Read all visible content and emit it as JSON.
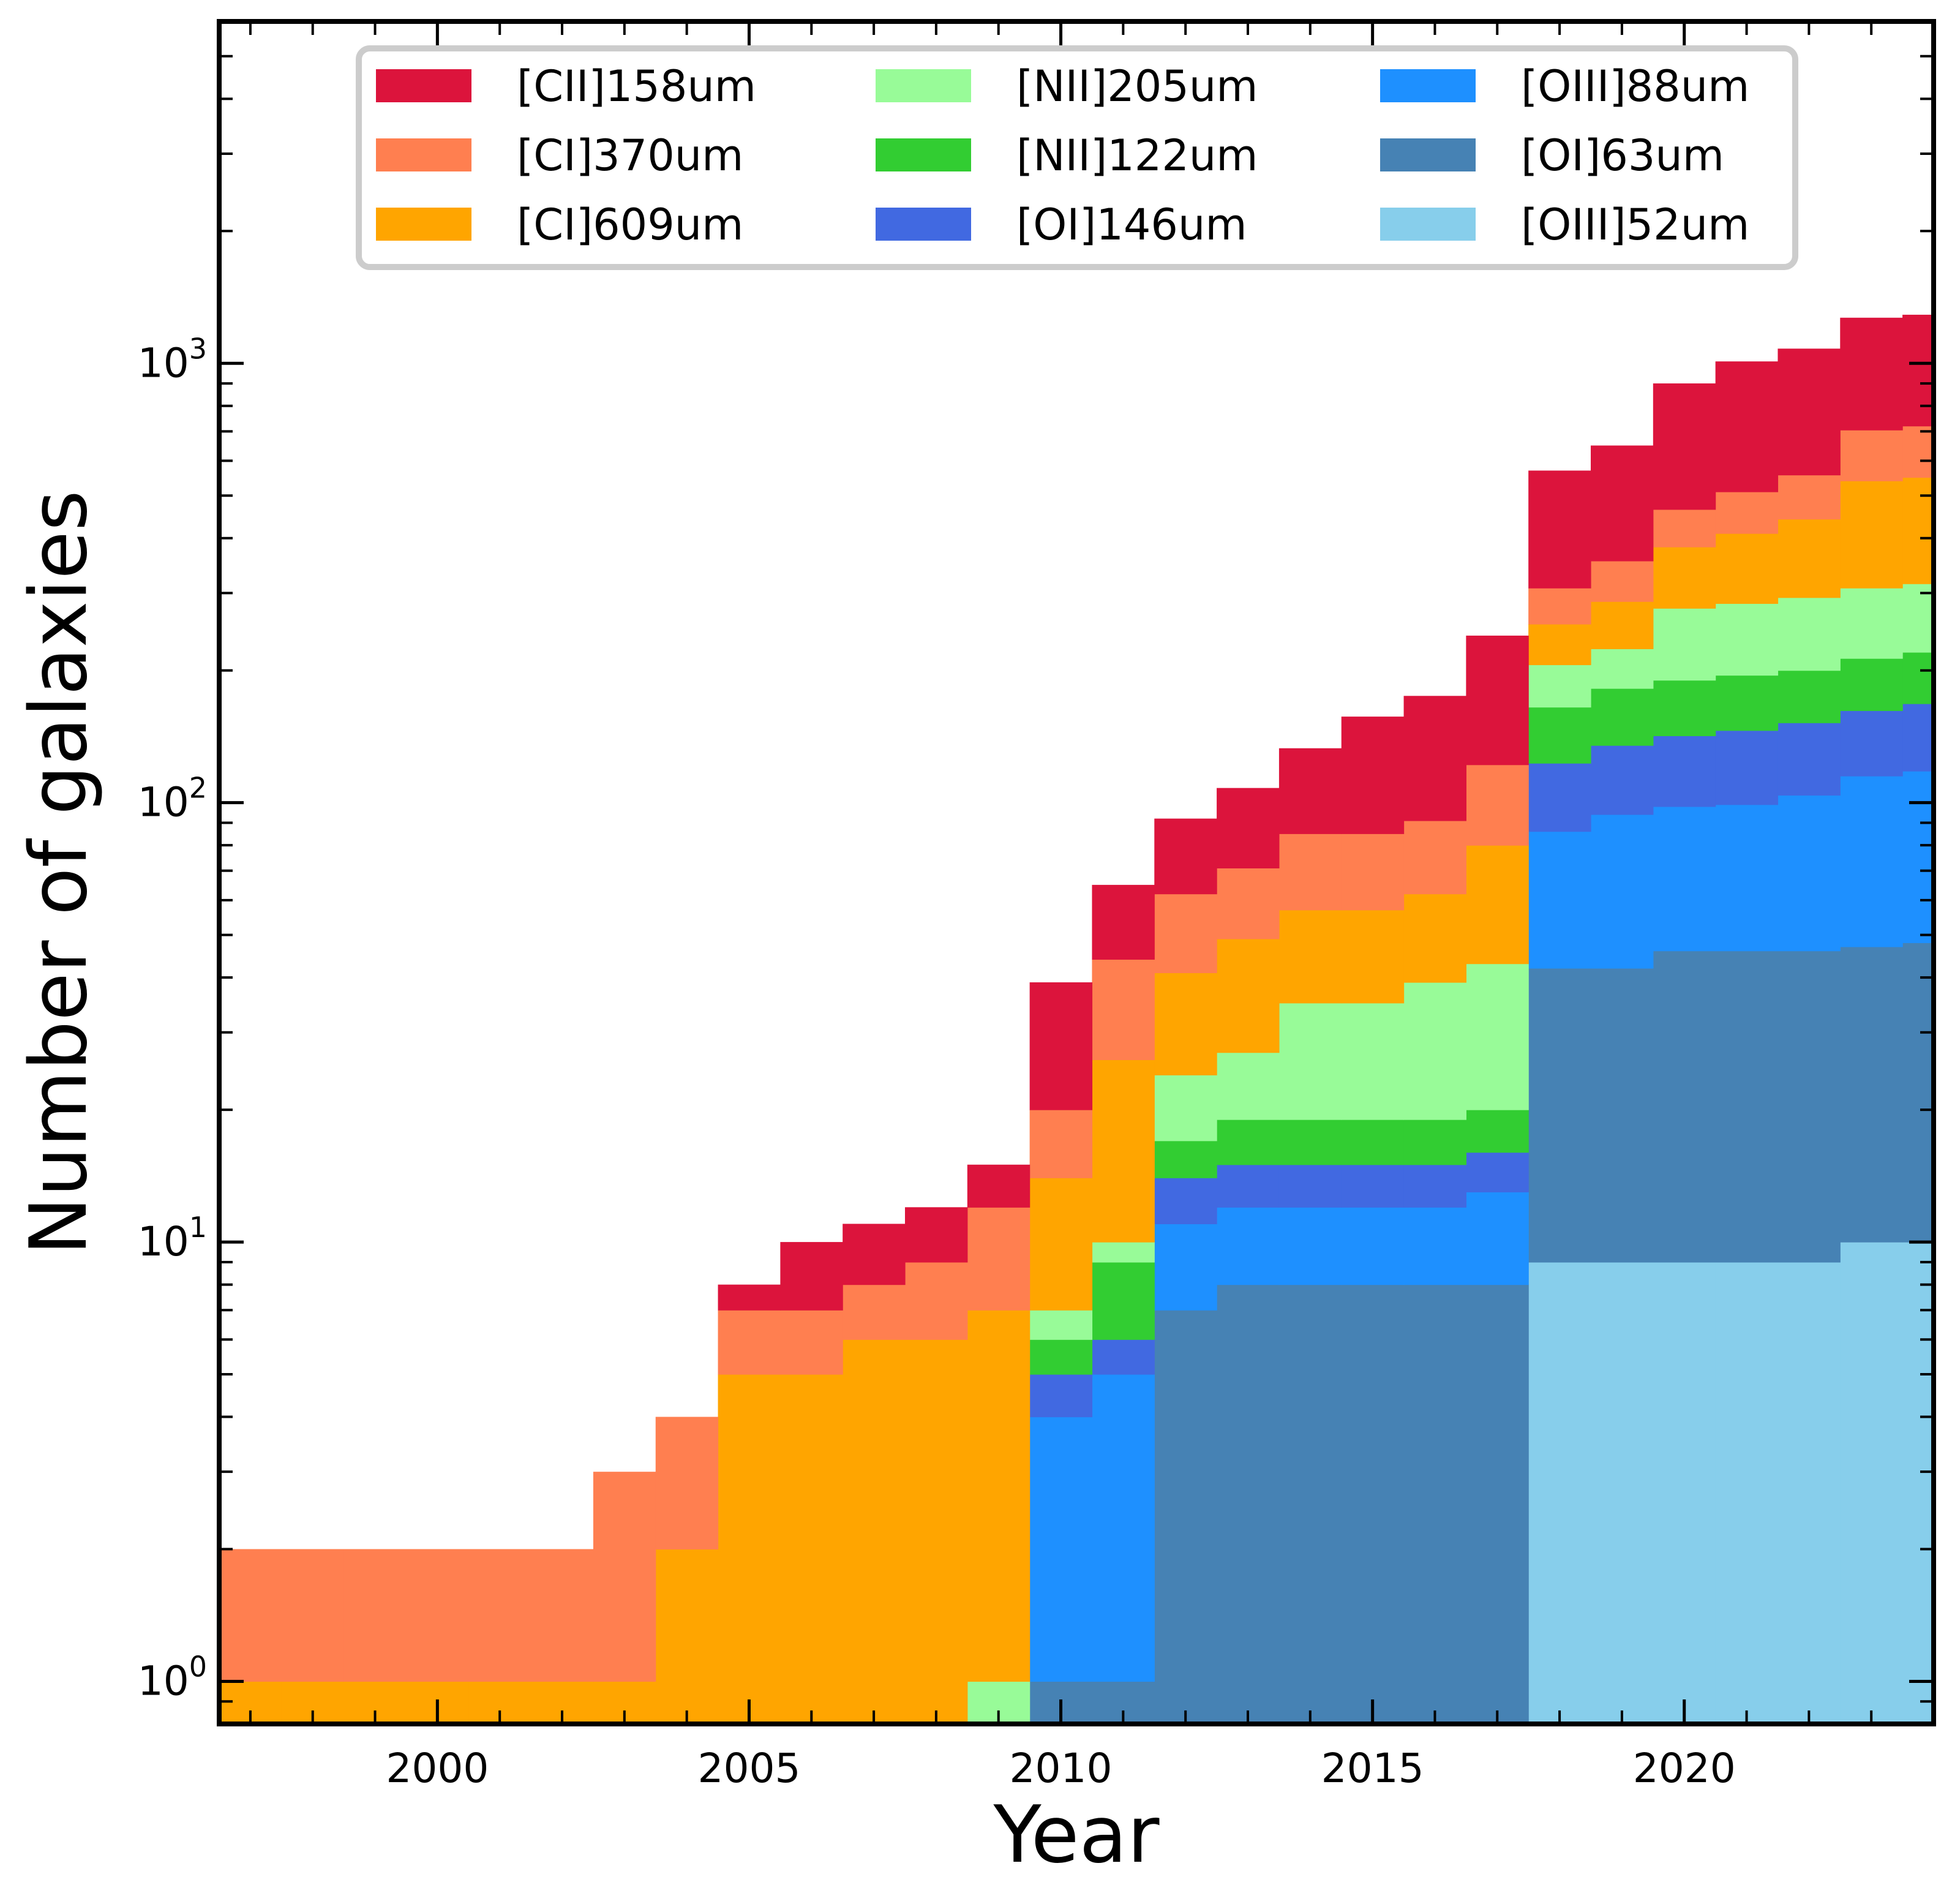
{
  "chart_data": {
    "type": "bar",
    "subtype": "stacked-histogram-step",
    "title": "",
    "xlabel": "Year",
    "ylabel": "Number of galaxies",
    "yscale": "log",
    "xlim": [
      1996.5,
      2024
    ],
    "ylim": [
      0.8,
      6000
    ],
    "x_ticks": [
      2000,
      2005,
      2010,
      2015,
      2020
    ],
    "x_tick_labels": [
      "2000",
      "2005",
      "2010",
      "2015",
      "2020"
    ],
    "y_ticks": [
      {
        "value": 1,
        "base": "10",
        "exp": "0"
      },
      {
        "value": 10,
        "base": "10",
        "exp": "1"
      },
      {
        "value": 100,
        "base": "10",
        "exp": "2"
      },
      {
        "value": 1000,
        "base": "10",
        "exp": "3"
      }
    ],
    "legend_position": "top-center",
    "legend_columns": 3,
    "years": [
      1997,
      1998,
      1999,
      2000,
      2001,
      2002,
      2003,
      2004,
      2005,
      2006,
      2007,
      2008,
      2009,
      2010,
      2011,
      2012,
      2013,
      2014,
      2015,
      2016,
      2017,
      2018,
      2019,
      2020,
      2021,
      2022,
      2023,
      2024
    ],
    "series": [
      {
        "name": "[OIII]52um",
        "color": "#87CEEB",
        "values": [
          0,
          0,
          0,
          0,
          0,
          0,
          0,
          0,
          0,
          0,
          0,
          0,
          0,
          0,
          0,
          0,
          0,
          0,
          0,
          0,
          0,
          9,
          9,
          9,
          9,
          9,
          10,
          10
        ]
      },
      {
        "name": "[OI]63um",
        "color": "#4682B4",
        "values": [
          0,
          0,
          0,
          0,
          0,
          0,
          0,
          0,
          0,
          0,
          0,
          0,
          0,
          1,
          1,
          7,
          8,
          8,
          8,
          8,
          8,
          42,
          42,
          46,
          46,
          46,
          47,
          48
        ]
      },
      {
        "name": "[OIII]88um",
        "color": "#1E90FF",
        "values": [
          0,
          0,
          0,
          0,
          0,
          0,
          0,
          0,
          0,
          0,
          0,
          0,
          0,
          4,
          5,
          11,
          12,
          12,
          12,
          12,
          13,
          86,
          94,
          98,
          99,
          104,
          115,
          118
        ]
      },
      {
        "name": "[OI]146um",
        "color": "#4169E1",
        "values": [
          0,
          0,
          0,
          0,
          0,
          0,
          0,
          0,
          0,
          0,
          0,
          0,
          0,
          5,
          6,
          14,
          15,
          15,
          15,
          15,
          16,
          123,
          135,
          142,
          146,
          152,
          162,
          168
        ]
      },
      {
        "name": "[NII]122um",
        "color": "#32CD32",
        "values": [
          0,
          0,
          0,
          0,
          0,
          0,
          0,
          0,
          0,
          0,
          0,
          0,
          0,
          6,
          9,
          17,
          19,
          19,
          19,
          19,
          20,
          165,
          182,
          190,
          195,
          200,
          213,
          220
        ]
      },
      {
        "name": "[NII]205um",
        "color": "#98FB98",
        "values": [
          0,
          0,
          0,
          0,
          0,
          0,
          0,
          0,
          0,
          0,
          0,
          0,
          1,
          7,
          10,
          24,
          27,
          35,
          35,
          39,
          43,
          206,
          224,
          277,
          284,
          293,
          308,
          315
        ]
      },
      {
        "name": "[CI]609um",
        "color": "#FFA500",
        "values": [
          1,
          1,
          1,
          1,
          1,
          1,
          1,
          2,
          5,
          5,
          6,
          6,
          7,
          14,
          26,
          41,
          49,
          57,
          57,
          62,
          80,
          255,
          287,
          382,
          410,
          442,
          540,
          550
        ]
      },
      {
        "name": "[CI]370um",
        "color": "#FF7F50",
        "values": [
          2,
          2,
          2,
          2,
          2,
          2,
          3,
          4,
          7,
          7,
          8,
          9,
          12,
          20,
          44,
          62,
          71,
          85,
          85,
          91,
          122,
          308,
          355,
          465,
          510,
          557,
          705,
          720
        ]
      },
      {
        "name": "[CII]158um",
        "color": "#DC143C",
        "values": [
          2,
          2,
          2,
          2,
          2,
          2,
          3,
          4,
          8,
          10,
          11,
          12,
          15,
          39,
          65,
          92,
          108,
          133,
          157,
          175,
          240,
          570,
          650,
          900,
          1010,
          1080,
          1270,
          1290
        ]
      }
    ]
  }
}
